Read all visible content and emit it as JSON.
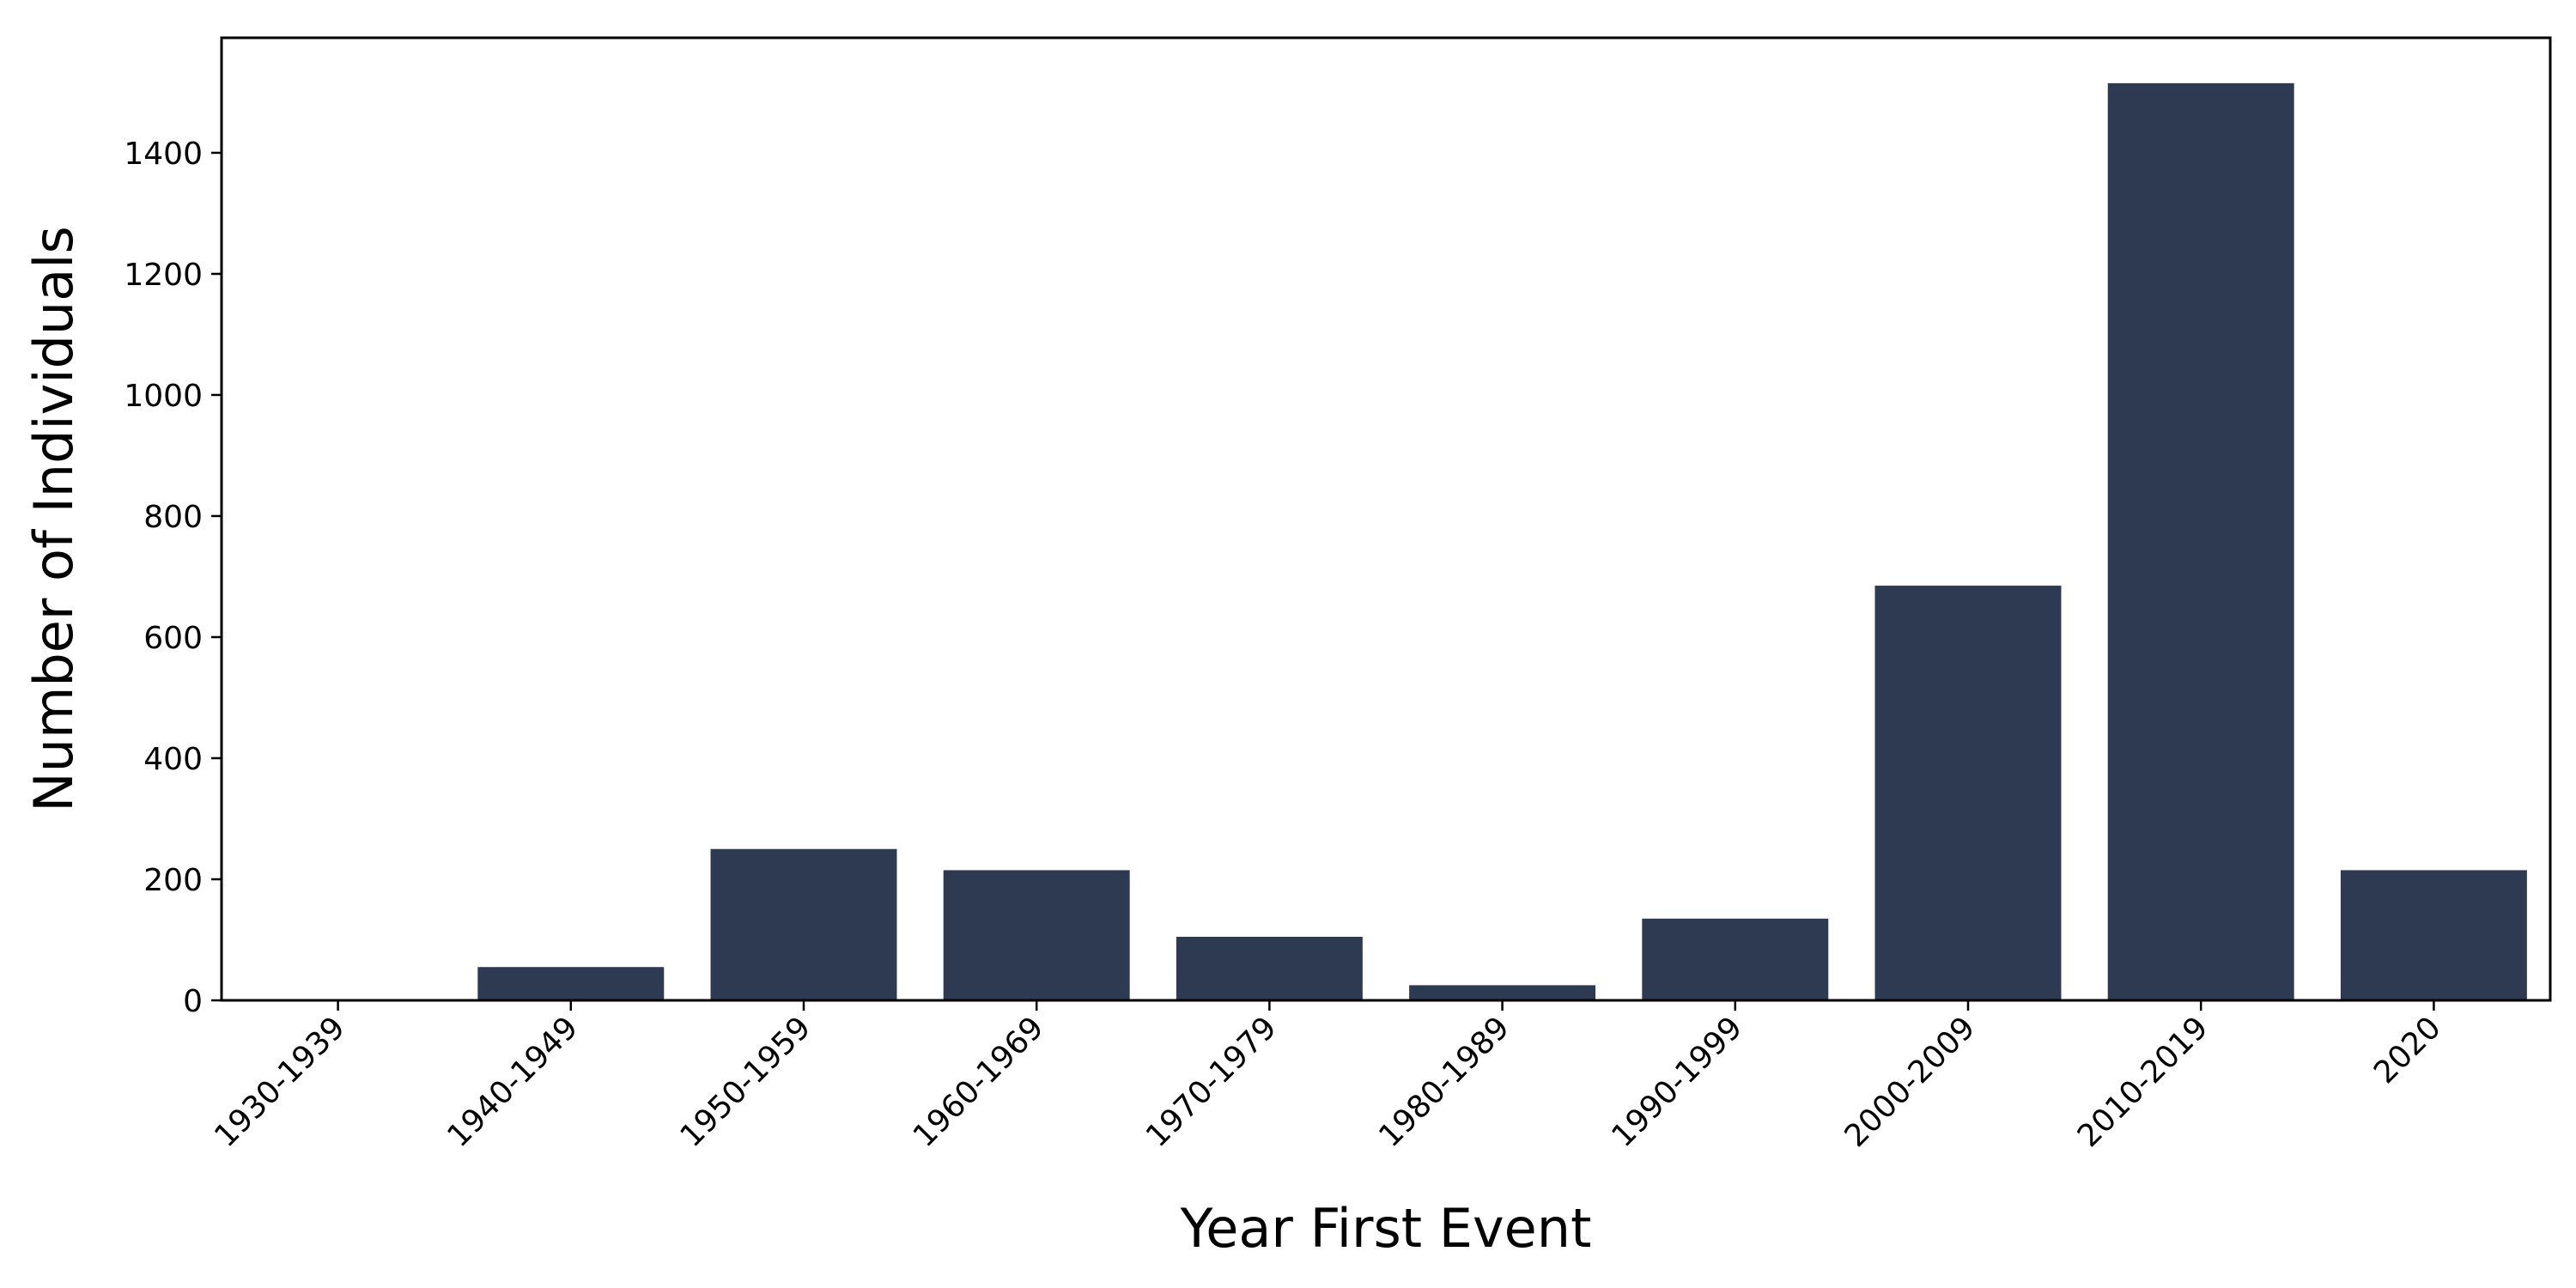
{
  "chart_data": {
    "type": "bar",
    "title": "",
    "xlabel": "Year First Event",
    "ylabel": "Number of Individuals",
    "categories": [
      "1930-1939",
      "1940-1949",
      "1950-1959",
      "1960-1969",
      "1970-1979",
      "1980-1989",
      "1990-1999",
      "2000-2009",
      "2010-2019",
      "2020"
    ],
    "values": [
      2,
      55,
      250,
      215,
      105,
      25,
      135,
      685,
      1515,
      215
    ],
    "ylim": [
      0,
      1590
    ],
    "yticks": [
      0,
      200,
      400,
      600,
      800,
      1000,
      1200,
      1400
    ],
    "bar_color": "#2d3a52",
    "grid": false,
    "legend": "none"
  }
}
